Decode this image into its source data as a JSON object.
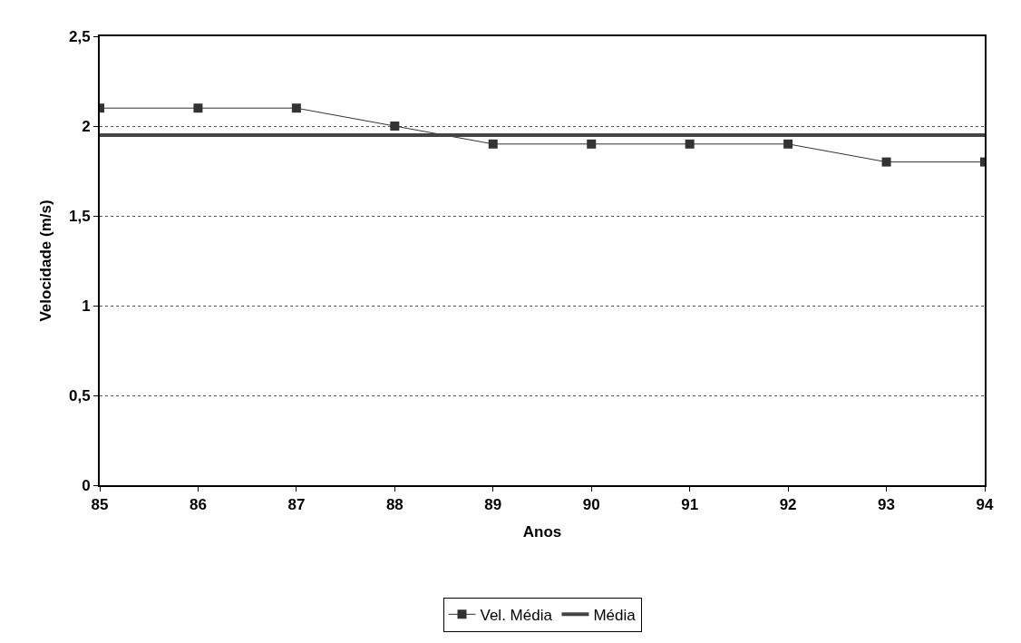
{
  "chart_data": {
    "type": "line",
    "xlabel": "Anos",
    "ylabel": "Velocidade (m/s)",
    "x": [
      85,
      86,
      87,
      88,
      89,
      90,
      91,
      92,
      93,
      94
    ],
    "series": [
      {
        "name": "Vel. Média",
        "color": "#333333",
        "values": [
          2.1,
          2.1,
          2.1,
          2.0,
          1.9,
          1.9,
          1.9,
          1.9,
          1.8,
          1.8
        ],
        "marker": "square"
      },
      {
        "name": "Média",
        "color": "#444444",
        "values": [
          1.95,
          1.95,
          1.95,
          1.95,
          1.95,
          1.95,
          1.95,
          1.95,
          1.95,
          1.95
        ],
        "marker": "none"
      }
    ],
    "xlim": [
      85,
      94
    ],
    "xticks": [
      85,
      86,
      87,
      88,
      89,
      90,
      91,
      92,
      93,
      94
    ],
    "ylim": [
      0,
      2.5
    ],
    "yticks": [
      0,
      {
        "value": 0.5,
        "label": "0,5"
      },
      1,
      {
        "value": 1.5,
        "label": "1,5"
      },
      2,
      {
        "value": 2.5,
        "label": "2,5"
      }
    ],
    "grid": "y",
    "legend": "bottom",
    "line_style": "solid"
  }
}
